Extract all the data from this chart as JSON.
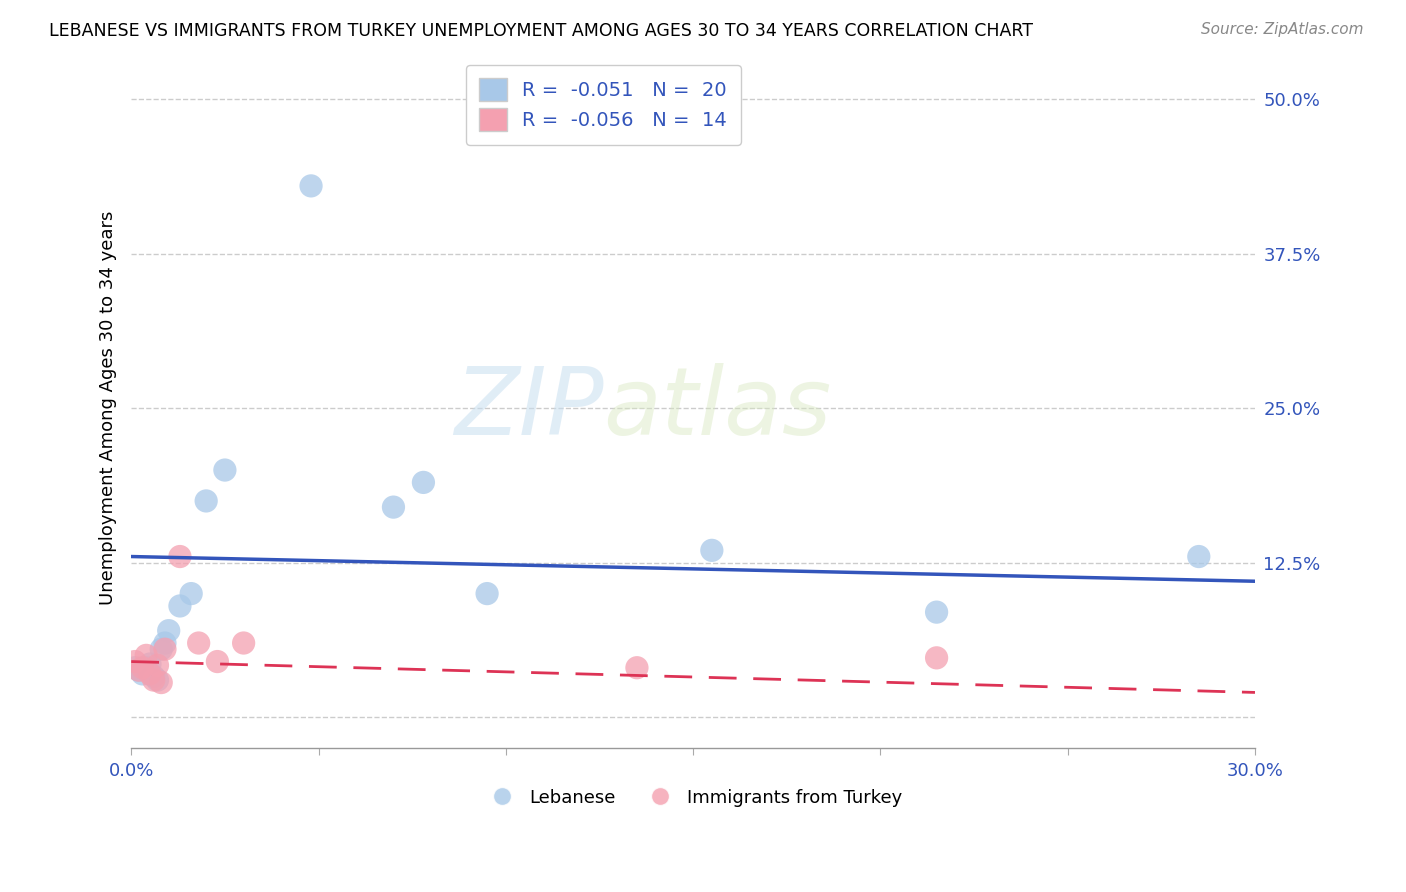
{
  "title": "LEBANESE VS IMMIGRANTS FROM TURKEY UNEMPLOYMENT AMONG AGES 30 TO 34 YEARS CORRELATION CHART",
  "source": "Source: ZipAtlas.com",
  "ylabel": "Unemployment Among Ages 30 to 34 years",
  "xmin": 0.0,
  "xmax": 0.3,
  "ymin": -0.025,
  "ymax": 0.525,
  "yticks": [
    0.0,
    0.125,
    0.25,
    0.375,
    0.5
  ],
  "ytick_labels": [
    "",
    "12.5%",
    "25.0%",
    "37.5%",
    "50.0%"
  ],
  "xticks": [
    0.0,
    0.05,
    0.1,
    0.15,
    0.2,
    0.25,
    0.3
  ],
  "xtick_labels": [
    "0.0%",
    "",
    "",
    "",
    "",
    "",
    "30.0%"
  ],
  "blue_color": "#A8C8E8",
  "pink_color": "#F4A0B0",
  "trend_blue": "#3355BB",
  "trend_pink": "#DD3355",
  "watermark_zip": "ZIP",
  "watermark_atlas": "atlas",
  "lebanese_x": [
    0.001,
    0.002,
    0.003,
    0.004,
    0.005,
    0.006,
    0.007,
    0.008,
    0.009,
    0.01,
    0.013,
    0.016,
    0.02,
    0.025,
    0.048,
    0.07,
    0.078,
    0.095,
    0.155,
    0.215,
    0.285
  ],
  "lebanese_y": [
    0.04,
    0.038,
    0.035,
    0.04,
    0.043,
    0.033,
    0.03,
    0.055,
    0.06,
    0.07,
    0.09,
    0.1,
    0.175,
    0.2,
    0.43,
    0.17,
    0.19,
    0.1,
    0.135,
    0.085,
    0.13
  ],
  "turkey_x": [
    0.001,
    0.002,
    0.003,
    0.004,
    0.005,
    0.006,
    0.007,
    0.008,
    0.009,
    0.013,
    0.018,
    0.023,
    0.03,
    0.135,
    0.215
  ],
  "turkey_y": [
    0.045,
    0.038,
    0.04,
    0.05,
    0.035,
    0.03,
    0.042,
    0.028,
    0.055,
    0.13,
    0.06,
    0.045,
    0.06,
    0.04,
    0.048
  ],
  "trend_blue_start_y": 0.13,
  "trend_blue_end_y": 0.11,
  "trend_pink_start_y": 0.045,
  "trend_pink_end_y": 0.02
}
